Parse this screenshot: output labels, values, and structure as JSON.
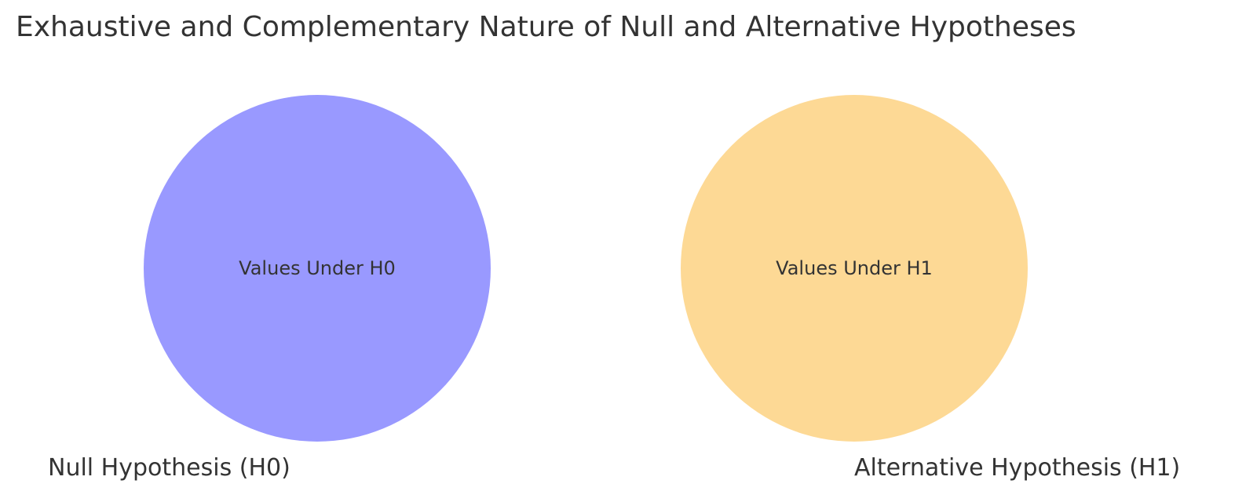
{
  "title": "Exhaustive and Complementary Nature of Null and Alternative Hypotheses",
  "sets": [
    {
      "label": "Null Hypothesis (H0)",
      "inner_text": "Values Under H0",
      "color": "#9999ff"
    },
    {
      "label": "Alternative Hypothesis (H1)",
      "inner_text": "Values Under H1",
      "color": "#fdd995"
    }
  ]
}
